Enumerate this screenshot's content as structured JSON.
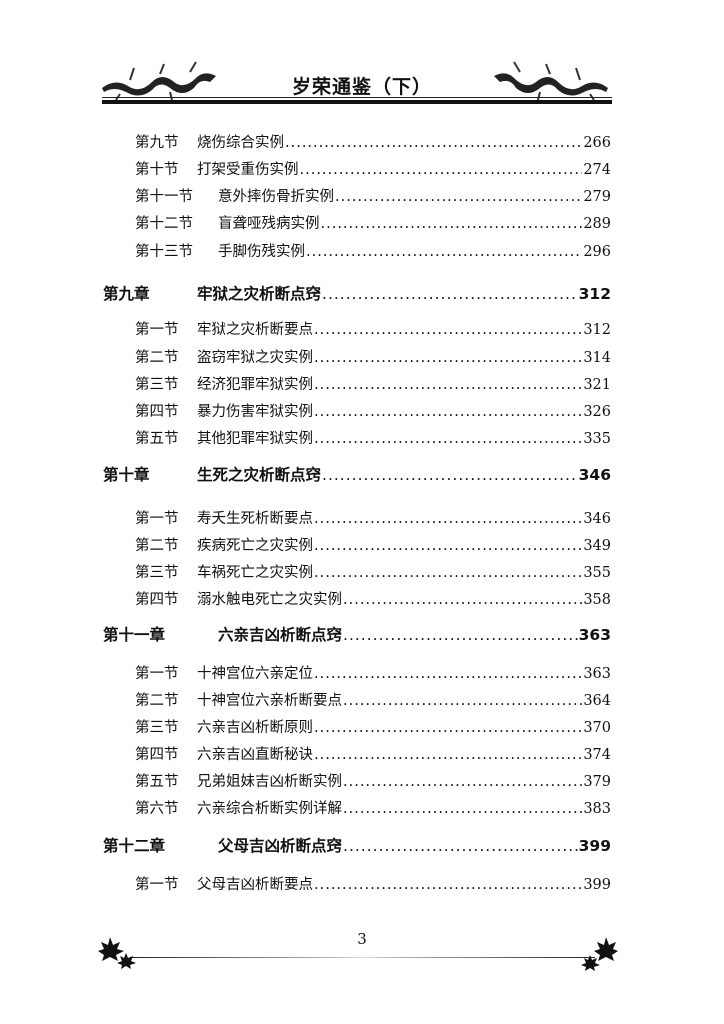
{
  "header": {
    "title": "岁荣通鉴（下）"
  },
  "toc": [
    {
      "type": "section",
      "label": "第九节",
      "title": "烧伤综合实例",
      "page": "266"
    },
    {
      "type": "section",
      "label": "第十节",
      "title": "打架受重伤实例",
      "page": "274"
    },
    {
      "type": "section",
      "label": "第十一节",
      "title": "意外摔伤骨折实例",
      "page": "279"
    },
    {
      "type": "section",
      "label": "第十二节",
      "title": "盲聋哑残病实例",
      "page": "289"
    },
    {
      "type": "section",
      "label": "第十三节",
      "title": "手脚伤残实例",
      "page": "296"
    },
    {
      "type": "chapter",
      "label": "第九章",
      "title": "牢狱之灾析断点窍",
      "page": "312"
    },
    {
      "type": "section",
      "label": "第一节",
      "title": "牢狱之灾析断要点",
      "page": "312"
    },
    {
      "type": "section",
      "label": "第二节",
      "title": "盗窃牢狱之灾实例",
      "page": "314"
    },
    {
      "type": "section",
      "label": "第三节",
      "title": "经济犯罪牢狱实例",
      "page": "321"
    },
    {
      "type": "section",
      "label": "第四节",
      "title": "暴力伤害牢狱实例",
      "page": "326"
    },
    {
      "type": "section",
      "label": "第五节",
      "title": "其他犯罪牢狱实例",
      "page": "335"
    },
    {
      "type": "chapter",
      "label": "第十章",
      "title": "生死之灾析断点窍",
      "page": "346"
    },
    {
      "type": "section",
      "label": "第一节",
      "title": "寿夭生死析断要点",
      "page": "346"
    },
    {
      "type": "section",
      "label": "第二节",
      "title": "疾病死亡之灾实例",
      "page": "349"
    },
    {
      "type": "section",
      "label": "第三节",
      "title": "车祸死亡之灾实例",
      "page": "355"
    },
    {
      "type": "section",
      "label": "第四节",
      "title": "溺水触电死亡之灾实例",
      "page": "358"
    },
    {
      "type": "chapter",
      "label": "第十一章",
      "title": "六亲吉凶析断点窍",
      "page": "363"
    },
    {
      "type": "section",
      "label": "第一节",
      "title": "十神宫位六亲定位",
      "page": "363"
    },
    {
      "type": "section",
      "label": "第二节",
      "title": "十神宫位六亲析断要点",
      "page": "364"
    },
    {
      "type": "section",
      "label": "第三节",
      "title": "六亲吉凶析断原则",
      "page": "370"
    },
    {
      "type": "section",
      "label": "第四节",
      "title": "六亲吉凶直断秘诀",
      "page": "374"
    },
    {
      "type": "section",
      "label": "第五节",
      "title": "兄弟姐妹吉凶析断实例",
      "page": "379"
    },
    {
      "type": "section",
      "label": "第六节",
      "title": "六亲综合析断实例详解",
      "page": "383"
    },
    {
      "type": "chapter",
      "label": "第十二章",
      "title": "父母吉凶析断点窍",
      "page": "399"
    },
    {
      "type": "section",
      "label": "第一节",
      "title": "父母吉凶析断要点",
      "page": "399"
    }
  ],
  "footer": {
    "page_number": "3"
  },
  "decorations": {
    "header_icons": [
      "dragon-icon",
      "dragon-icon"
    ],
    "footer_icons": [
      "maple-leaf-icon",
      "maple-leaf-icon"
    ]
  }
}
